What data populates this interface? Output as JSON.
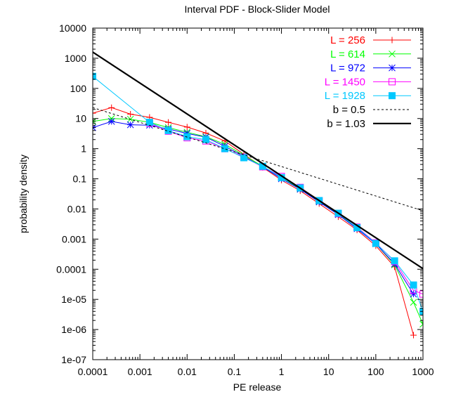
{
  "chart_data": {
    "type": "line",
    "title": "Interval PDF - Block-Slider Model",
    "xlabel": "PE release",
    "ylabel": "probability density",
    "xscale": "log",
    "yscale": "log",
    "xlim": [
      0.0001,
      1000
    ],
    "ylim": [
      1e-07,
      10000
    ],
    "x_ticks": [
      {
        "value": 0.0001,
        "label": "0.0001"
      },
      {
        "value": 0.001,
        "label": "0.001"
      },
      {
        "value": 0.01,
        "label": "0.01"
      },
      {
        "value": 0.1,
        "label": "0.1"
      },
      {
        "value": 1,
        "label": "1"
      },
      {
        "value": 10,
        "label": "10"
      },
      {
        "value": 100,
        "label": "100"
      },
      {
        "value": 1000,
        "label": "1000"
      }
    ],
    "y_ticks": [
      {
        "value": 10000,
        "label": "10000"
      },
      {
        "value": 1000,
        "label": "1000"
      },
      {
        "value": 100,
        "label": "100"
      },
      {
        "value": 10,
        "label": "10"
      },
      {
        "value": 1,
        "label": "1"
      },
      {
        "value": 0.1,
        "label": "0.1"
      },
      {
        "value": 0.01,
        "label": "0.01"
      },
      {
        "value": 0.001,
        "label": "0.001"
      },
      {
        "value": 0.0001,
        "label": "0.0001"
      },
      {
        "value": 1e-05,
        "label": "1e-05"
      },
      {
        "value": 1e-06,
        "label": "1e-06"
      },
      {
        "value": 1e-07,
        "label": "1e-07"
      }
    ],
    "grid": false,
    "legend_position": "top-right",
    "series": [
      {
        "name": "L =  256",
        "color": "#ff0000",
        "marker": "plus",
        "x": [
          0.0001,
          0.00025,
          0.00063,
          0.0016,
          0.004,
          0.01,
          0.025,
          0.063,
          0.16,
          0.4,
          1,
          2.5,
          6.3,
          16,
          40,
          100,
          250,
          630
        ],
        "y": [
          15,
          23,
          14,
          11,
          7.5,
          5.2,
          3.3,
          1.8,
          0.65,
          0.24,
          0.09,
          0.04,
          0.015,
          0.0055,
          0.002,
          0.0006,
          0.00012,
          6.5e-07
        ]
      },
      {
        "name": "L =  614",
        "color": "#00ff00",
        "marker": "x",
        "x": [
          0.0001,
          0.00025,
          0.00063,
          0.0016,
          0.004,
          0.01,
          0.025,
          0.063,
          0.16,
          0.4,
          1,
          2.5,
          6.3,
          16,
          40,
          100,
          250,
          630,
          1000
        ],
        "y": [
          8,
          10,
          9.5,
          7.5,
          5,
          3.5,
          2.5,
          1.4,
          0.6,
          0.26,
          0.11,
          0.046,
          0.018,
          0.0068,
          0.0024,
          0.0007,
          0.00014,
          8e-06,
          1.5e-06
        ]
      },
      {
        "name": "L =  972",
        "color": "#0000ff",
        "marker": "star",
        "x": [
          0.0001,
          0.00025,
          0.00063,
          0.0016,
          0.004,
          0.01,
          0.025,
          0.063,
          0.16,
          0.4,
          1,
          2.5,
          6.3,
          16,
          40,
          100,
          250,
          630
        ],
        "y": [
          5,
          8,
          6.2,
          6,
          4.5,
          3.2,
          2.4,
          1.2,
          0.55,
          0.25,
          0.1,
          0.045,
          0.017,
          0.0065,
          0.0022,
          0.0007,
          0.00015,
          1.5e-05
        ]
      },
      {
        "name": "L = 1450",
        "color": "#ff00ff",
        "marker": "square-open",
        "x": [
          0.0016,
          0.004,
          0.01,
          0.025,
          0.063,
          0.16,
          0.4,
          1,
          2.5,
          6.3,
          16,
          40,
          100,
          250,
          630,
          1000
        ],
        "y": [
          7,
          3.8,
          2.3,
          1.8,
          1,
          0.52,
          0.25,
          0.12,
          0.052,
          0.019,
          0.007,
          0.0025,
          0.00075,
          0.00018,
          2e-05,
          1.5e-05
        ]
      },
      {
        "name": "L = 1928",
        "color": "#00c8ff",
        "marker": "square-filled",
        "x": [
          0.0001,
          0.0016,
          0.004,
          0.01,
          0.025,
          0.063,
          0.16,
          0.4,
          1,
          2.5,
          6.3,
          16,
          40,
          100,
          250,
          630,
          1000
        ],
        "y": [
          250,
          7.5,
          4,
          2.5,
          2,
          1,
          0.5,
          0.26,
          0.11,
          0.05,
          0.019,
          0.0072,
          0.0024,
          0.00072,
          0.00019,
          3e-05,
          4e-06
        ]
      },
      {
        "name": "b = 0.5",
        "color": "#000000",
        "style": "dashed",
        "x": [
          0.0001,
          1000
        ],
        "y": [
          23,
          0.0087
        ]
      },
      {
        "name": "b = 1.03",
        "color": "#000000",
        "style": "solid-thick",
        "x": [
          0.0001,
          1000
        ],
        "y": [
          1600,
          0.000105
        ]
      }
    ]
  }
}
